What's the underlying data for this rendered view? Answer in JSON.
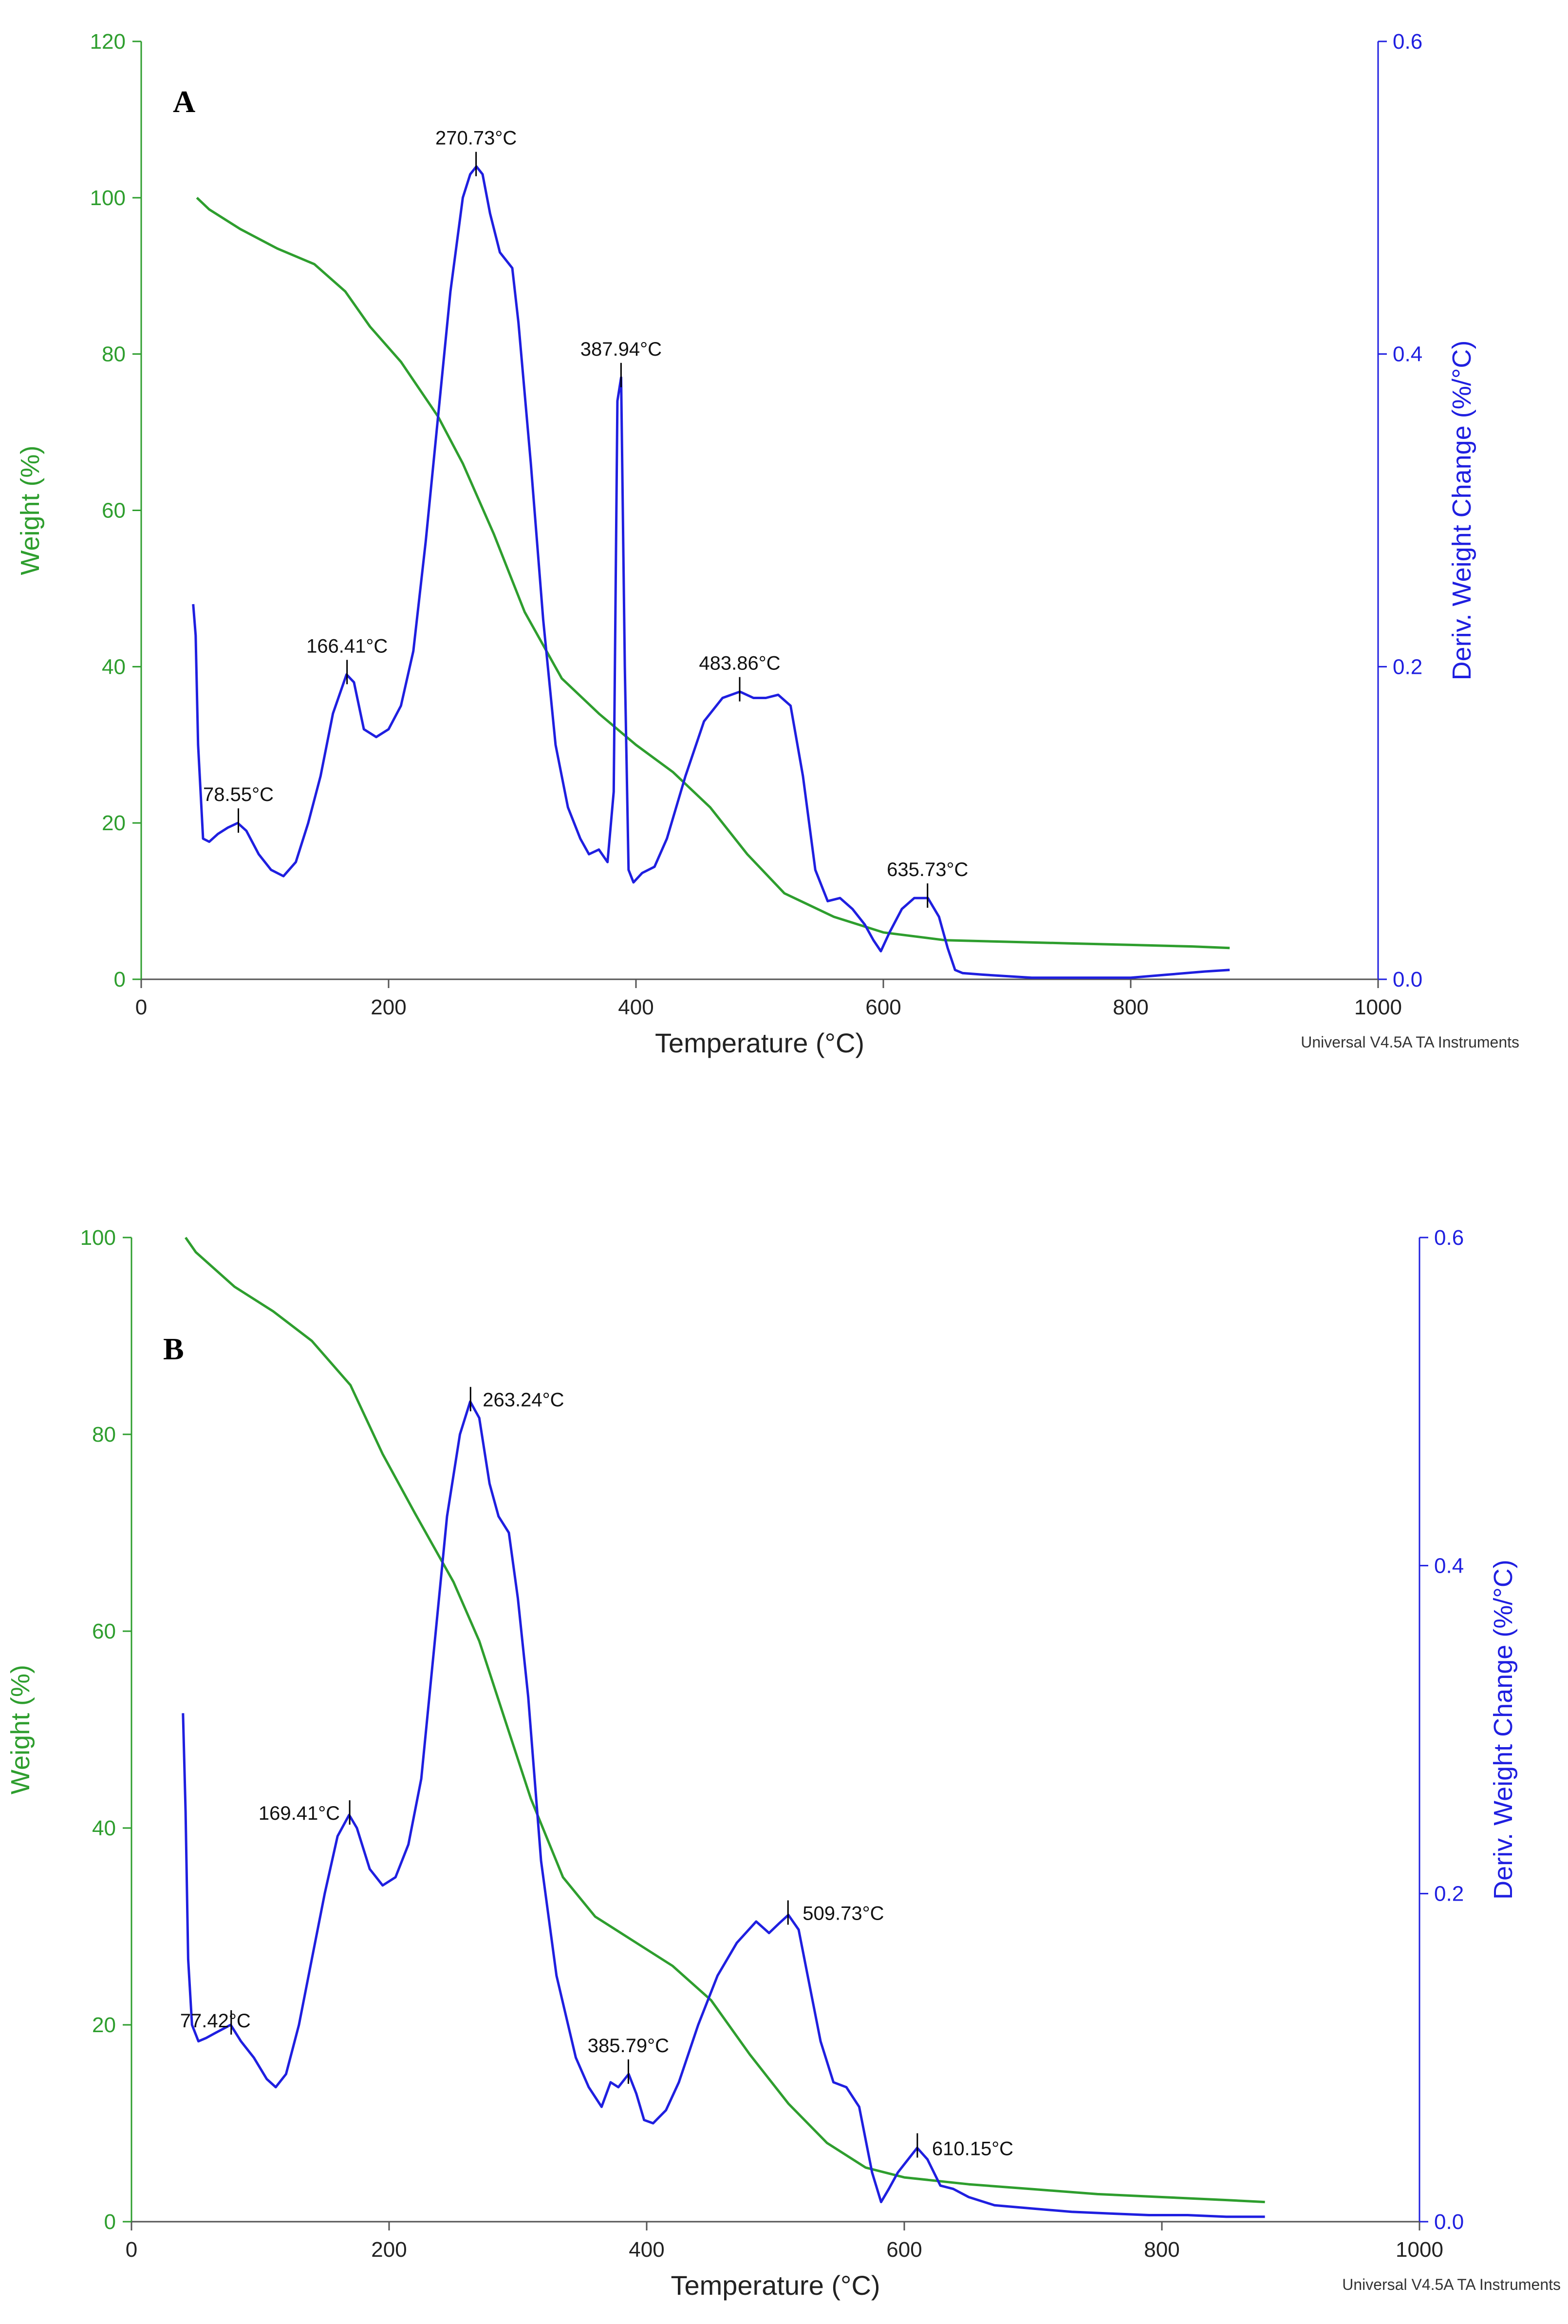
{
  "colors": {
    "weight": "#2e9e2e",
    "deriv": "#1f1fe0",
    "axis_text": "#222222",
    "watermark": "#333333"
  },
  "chart_data": [
    {
      "type": "line",
      "panel_label": "A",
      "xlabel": "Temperature (°C)",
      "ylabel_left": "Weight (%)",
      "ylabel_right": "Deriv. Weight Change (%/°C)",
      "xlim": [
        0,
        1000
      ],
      "ylim_left": [
        0,
        120
      ],
      "ylim_right": [
        0,
        0.6
      ],
      "x_ticks": [
        "0",
        "200",
        "400",
        "600",
        "800",
        "1000"
      ],
      "y_left_ticks": [
        "0",
        "20",
        "40",
        "60",
        "80",
        "100",
        "120"
      ],
      "y_right_ticks": [
        "0.0",
        "0.2",
        "0.4",
        "0.6"
      ],
      "watermark": "Universal V4.5A TA Instruments",
      "series": [
        {
          "name": "Weight",
          "axis": "left",
          "x": [
            45,
            55,
            80,
            110,
            140,
            165,
            185,
            210,
            240,
            260,
            285,
            310,
            340,
            370,
            400,
            430,
            460,
            490,
            520,
            560,
            600,
            650,
            700,
            750,
            800,
            850,
            880
          ],
          "y": [
            100,
            98.5,
            96,
            93.5,
            91.5,
            88,
            83.5,
            79,
            72,
            66,
            57,
            47,
            38.5,
            34,
            30,
            26.5,
            22,
            16,
            11,
            8,
            6,
            5,
            4.8,
            4.6,
            4.4,
            4.2,
            4.0
          ]
        },
        {
          "name": "Deriv. Weight Change",
          "axis": "right",
          "x": [
            42,
            44,
            46,
            50,
            55,
            62,
            70,
            78,
            85,
            95,
            105,
            115,
            125,
            135,
            145,
            155,
            166,
            172,
            180,
            190,
            200,
            210,
            220,
            230,
            240,
            250,
            260,
            266,
            271,
            276,
            282,
            290,
            300,
            305,
            315,
            325,
            335,
            345,
            355,
            362,
            370,
            377,
            382,
            385,
            388,
            391,
            394,
            398,
            405,
            415,
            425,
            440,
            455,
            470,
            484,
            495,
            505,
            515,
            525,
            535,
            545,
            555,
            565,
            575,
            585,
            592,
            598,
            605,
            615,
            625,
            636,
            645,
            652,
            658,
            664,
            680,
            700,
            720,
            750,
            780,
            800,
            830,
            860,
            880
          ],
          "y": [
            0.24,
            0.22,
            0.15,
            0.09,
            0.088,
            0.093,
            0.097,
            0.1,
            0.095,
            0.08,
            0.07,
            0.066,
            0.075,
            0.1,
            0.13,
            0.17,
            0.195,
            0.19,
            0.16,
            0.155,
            0.16,
            0.175,
            0.21,
            0.28,
            0.36,
            0.44,
            0.5,
            0.515,
            0.52,
            0.515,
            0.49,
            0.465,
            0.455,
            0.42,
            0.33,
            0.23,
            0.15,
            0.11,
            0.09,
            0.08,
            0.083,
            0.075,
            0.12,
            0.37,
            0.385,
            0.2,
            0.07,
            0.062,
            0.068,
            0.072,
            0.09,
            0.13,
            0.165,
            0.18,
            0.184,
            0.18,
            0.18,
            0.182,
            0.175,
            0.13,
            0.07,
            0.05,
            0.052,
            0.045,
            0.035,
            0.025,
            0.018,
            0.03,
            0.045,
            0.052,
            0.052,
            0.04,
            0.02,
            0.006,
            0.004,
            0.003,
            0.002,
            0.001,
            0.001,
            0.001,
            0.001,
            0.003,
            0.005,
            0.006
          ]
        }
      ],
      "annotations": [
        {
          "label": "78.55°C",
          "x": 78.55,
          "y": 0.1
        },
        {
          "label": "166.41°C",
          "x": 166.41,
          "y": 0.195
        },
        {
          "label": "270.73°C",
          "x": 270.73,
          "y": 0.52
        },
        {
          "label": "387.94°C",
          "x": 387.94,
          "y": 0.385
        },
        {
          "label": "483.86°C",
          "x": 483.86,
          "y": 0.184
        },
        {
          "label": "635.73°C",
          "x": 635.73,
          "y": 0.052
        }
      ]
    },
    {
      "type": "line",
      "panel_label": "B",
      "xlabel": "Temperature (°C)",
      "ylabel_left": "Weight (%)",
      "ylabel_right": "Deriv. Weight Change (%/°C)",
      "xlim": [
        0,
        1000
      ],
      "ylim_left": [
        0,
        100
      ],
      "ylim_right": [
        0,
        0.6
      ],
      "x_ticks": [
        "0",
        "200",
        "400",
        "600",
        "800",
        "1000"
      ],
      "y_left_ticks": [
        "0",
        "20",
        "40",
        "60",
        "80",
        "100"
      ],
      "y_right_ticks": [
        "0.0",
        "0.2",
        "0.4",
        "0.6"
      ],
      "watermark": "Universal V4.5A TA Instruments",
      "series": [
        {
          "name": "Weight",
          "axis": "left",
          "x": [
            42,
            50,
            80,
            110,
            140,
            170,
            195,
            220,
            250,
            270,
            290,
            310,
            335,
            360,
            390,
            420,
            450,
            480,
            510,
            540,
            570,
            600,
            650,
            700,
            750,
            800,
            850,
            880
          ],
          "y": [
            100,
            98.5,
            95,
            92.5,
            89.5,
            85,
            78,
            72,
            65,
            59,
            51,
            43,
            35,
            31,
            28.5,
            26,
            22.5,
            17,
            12,
            8,
            5.5,
            4.5,
            3.8,
            3.3,
            2.8,
            2.5,
            2.2,
            2.0
          ]
        },
        {
          "name": "Deriv. Weight Change",
          "axis": "right",
          "x": [
            40,
            42,
            44,
            47,
            52,
            58,
            65,
            77,
            85,
            95,
            105,
            112,
            120,
            130,
            140,
            150,
            160,
            169,
            175,
            185,
            195,
            205,
            215,
            225,
            235,
            245,
            255,
            263,
            270,
            278,
            285,
            293,
            300,
            308,
            318,
            330,
            345,
            355,
            365,
            372,
            378,
            386,
            392,
            398,
            405,
            415,
            425,
            440,
            455,
            470,
            485,
            495,
            503,
            510,
            518,
            525,
            535,
            545,
            555,
            565,
            575,
            582,
            588,
            595,
            605,
            610,
            618,
            628,
            638,
            650,
            670,
            700,
            730,
            760,
            790,
            820,
            850,
            880
          ],
          "y": [
            0.31,
            0.25,
            0.16,
            0.12,
            0.11,
            0.112,
            0.115,
            0.12,
            0.11,
            0.1,
            0.087,
            0.082,
            0.09,
            0.12,
            0.16,
            0.2,
            0.235,
            0.248,
            0.24,
            0.215,
            0.205,
            0.21,
            0.23,
            0.27,
            0.35,
            0.43,
            0.48,
            0.5,
            0.49,
            0.45,
            0.43,
            0.42,
            0.38,
            0.32,
            0.22,
            0.15,
            0.1,
            0.082,
            0.07,
            0.085,
            0.082,
            0.09,
            0.078,
            0.062,
            0.06,
            0.068,
            0.085,
            0.12,
            0.15,
            0.17,
            0.183,
            0.176,
            0.182,
            0.187,
            0.178,
            0.15,
            0.11,
            0.085,
            0.082,
            0.07,
            0.03,
            0.012,
            0.02,
            0.03,
            0.04,
            0.045,
            0.038,
            0.022,
            0.02,
            0.015,
            0.01,
            0.008,
            0.006,
            0.005,
            0.004,
            0.004,
            0.003,
            0.003
          ]
        }
      ],
      "annotations": [
        {
          "label": "77.42°C",
          "x": 77.42,
          "y": 0.12
        },
        {
          "label": "169.41°C",
          "x": 169.41,
          "y": 0.248
        },
        {
          "label": "263.24°C",
          "x": 263.24,
          "y": 0.5
        },
        {
          "label": "385.79°C",
          "x": 385.79,
          "y": 0.09
        },
        {
          "label": "509.73°C",
          "x": 509.73,
          "y": 0.187
        },
        {
          "label": "610.15°C",
          "x": 610.15,
          "y": 0.045
        }
      ]
    }
  ]
}
